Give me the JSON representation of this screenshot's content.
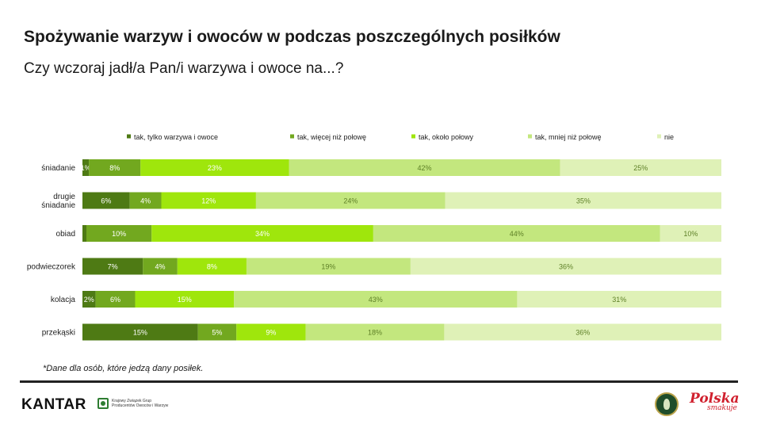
{
  "header": {
    "title": "Spożywanie warzyw i owoców w podczas poszczególnych posiłków",
    "subtitle": "Czy wczoraj jadł/a Pan/i warzywa i owoce na...?"
  },
  "chart_data": {
    "type": "bar",
    "orientation": "horizontal-stacked-100",
    "title": "Spożywanie warzyw i owoców w podczas poszczególnych posiłków",
    "legend_position": "top",
    "categories": [
      "śniadanie",
      "drugie śniadanie",
      "obiad",
      "podwieczorek",
      "kolacja",
      "przekąski"
    ],
    "category_lines": [
      [
        "śniadanie"
      ],
      [
        "drugie",
        "śniadanie"
      ],
      [
        "obiad"
      ],
      [
        "podwieczorek"
      ],
      [
        "kolacja"
      ],
      [
        "przekąski"
      ]
    ],
    "series": [
      {
        "name": "tak, tylko warzywa i owoce",
        "color": "#4e7a14",
        "label_color": "#ffffff",
        "values": [
          1,
          6,
          0,
          7,
          2,
          15
        ],
        "labels": [
          "1%",
          "6%",
          "%",
          "7%",
          "2%",
          "15%"
        ]
      },
      {
        "name": "tak, więcej niż połowę",
        "color": "#72a81f",
        "label_color": "#ffffff",
        "values": [
          8,
          4,
          10,
          4,
          6,
          5
        ],
        "labels": [
          "8%",
          "4%",
          "10%",
          "4%",
          "6%",
          "5%"
        ]
      },
      {
        "name": "tak, około połowy",
        "color": "#9fe60c",
        "label_color": "#ffffff",
        "values": [
          23,
          12,
          34,
          8,
          15,
          9
        ],
        "labels": [
          "23%",
          "12%",
          "34%",
          "8%",
          "15%",
          "9%"
        ]
      },
      {
        "name": "tak, mniej niż połowę",
        "color": "#c3e77e",
        "label_color": "#5d7f26",
        "values": [
          42,
          24,
          44,
          19,
          43,
          18
        ],
        "labels": [
          "42%",
          "24%",
          "44%",
          "19%",
          "43%",
          "18%"
        ]
      },
      {
        "name": "nie",
        "color": "#dff1b7",
        "label_color": "#5d7f26",
        "values": [
          25,
          35,
          10,
          36,
          31,
          36
        ],
        "labels": [
          "25%",
          "35%",
          "10%",
          "36%",
          "31%",
          "36%"
        ]
      }
    ]
  },
  "footnote": "*Dane dla osób, które jedzą dany posiłek.",
  "footer": {
    "kantar_logo_text": "KANTAR",
    "kzgp_line1": "Krajowy Związek Grup",
    "kzgp_line2": "Producentów Owoców i Warzyw",
    "polska_text": "Polska",
    "smakuje_text": "smakuje"
  }
}
